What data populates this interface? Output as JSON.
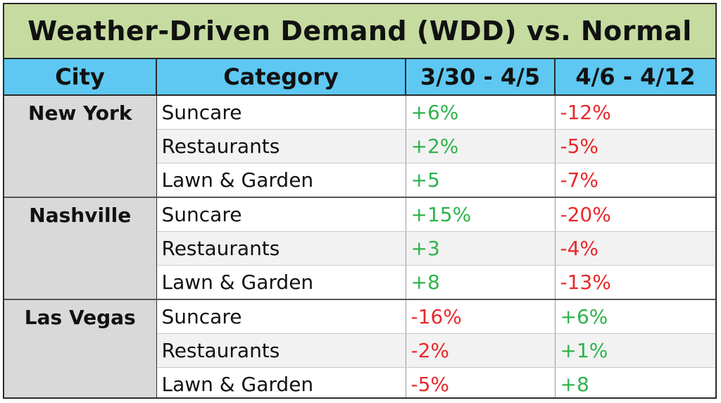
{
  "title": "Weather-Driven Demand (WDD) vs. Normal",
  "headers": {
    "city": "City",
    "category": "Category",
    "week1": "3/30 - 4/5",
    "week2": "4/6 - 4/12"
  },
  "colors": {
    "title_bg": "#c5dba0",
    "header_bg": "#5ec8f2",
    "city_bg": "#d9d9d9",
    "positive": "#2eb34b",
    "negative": "#e8282b"
  },
  "rows": [
    {
      "city": "New York",
      "items": [
        {
          "category": "Suncare",
          "week1": "+6%",
          "week2": "-12%"
        },
        {
          "category": "Restaurants",
          "week1": "+2%",
          "week2": "-5%"
        },
        {
          "category": "Lawn & Garden",
          "week1": "+5",
          "week2": "-7%"
        }
      ]
    },
    {
      "city": "Nashville",
      "items": [
        {
          "category": "Suncare",
          "week1": "+15%",
          "week2": "-20%"
        },
        {
          "category": "Restaurants",
          "week1": "+3",
          "week2": "-4%"
        },
        {
          "category": "Lawn & Garden",
          "week1": "+8",
          "week2": "-13%"
        }
      ]
    },
    {
      "city": "Las Vegas",
      "items": [
        {
          "category": "Suncare",
          "week1": "-16%",
          "week2": "+6%"
        },
        {
          "category": "Restaurants",
          "week1": "-2%",
          "week2": "+1%"
        },
        {
          "category": "Lawn & Garden",
          "week1": "-5%",
          "week2": "+8"
        }
      ]
    }
  ]
}
